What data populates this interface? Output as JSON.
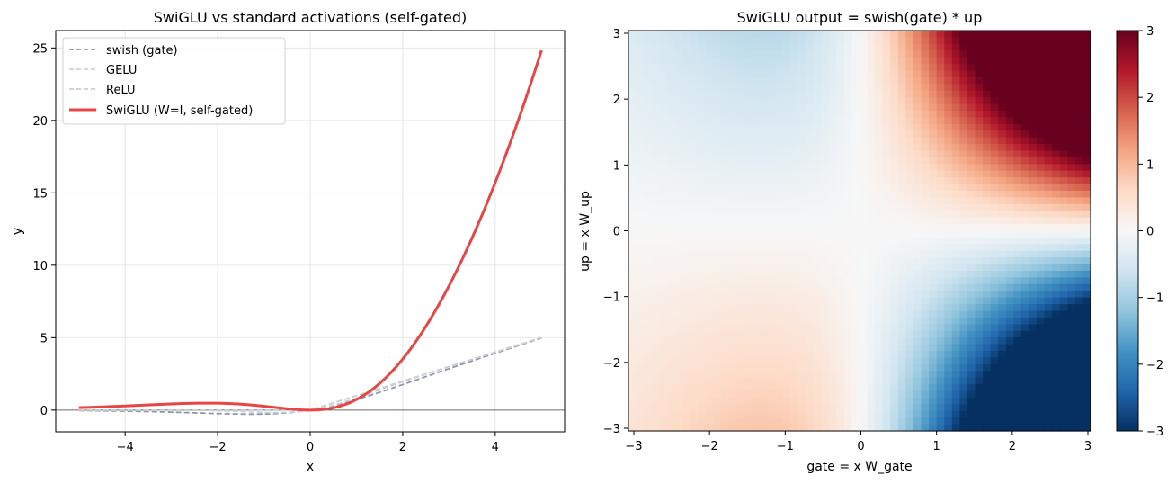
{
  "chart_data": [
    {
      "type": "line",
      "title": "SwiGLU vs standard activations (self-gated)",
      "xlabel": "x",
      "ylabel": "y",
      "xlim": [
        -5.5,
        5.5
      ],
      "ylim": [
        -1.5,
        26.2
      ],
      "xticks": [
        -4,
        -2,
        0,
        2,
        4
      ],
      "xtick_labels": [
        "−4",
        "−2",
        "0",
        "2",
        "4"
      ],
      "yticks": [
        0,
        5,
        10,
        15,
        20,
        25
      ],
      "ytick_labels": [
        "0",
        "5",
        "10",
        "15",
        "20",
        "25"
      ],
      "grid": true,
      "legend_position": "upper-left",
      "zero_line": true,
      "x_domain": [
        -5,
        5
      ],
      "series": [
        {
          "name": "swish (gate)",
          "function": "swish",
          "style": "dashed",
          "color": "#8c98b0"
        },
        {
          "name": "GELU",
          "function": "gelu",
          "style": "dashed",
          "color": "#c6d2df"
        },
        {
          "name": "ReLU",
          "function": "relu",
          "style": "dashed",
          "color": "#cdcdcd"
        },
        {
          "name": "SwiGLU (W=I, self-gated)",
          "function": "swiglu",
          "style": "solid",
          "color": "#e84545"
        }
      ]
    },
    {
      "type": "heatmap",
      "title": "SwiGLU output = swish(gate) * up",
      "xlabel": "gate = x W_gate",
      "ylabel": "up = x W_up",
      "function": "swish(gate) * up",
      "xlim": [
        -3,
        3
      ],
      "ylim": [
        -3,
        3
      ],
      "grid_size": 60,
      "xticks": [
        -3,
        -2,
        -1,
        0,
        1,
        2,
        3
      ],
      "xtick_labels": [
        "−3",
        "−2",
        "−1",
        "0",
        "1",
        "2",
        "3"
      ],
      "yticks": [
        -3,
        -2,
        -1,
        0,
        1,
        2,
        3
      ],
      "ytick_labels": [
        "−3",
        "−2",
        "−1",
        "0",
        "1",
        "2",
        "3"
      ],
      "colormap": "RdBu_r",
      "color_range": [
        -3,
        3
      ],
      "colorbar_ticks": [
        -3,
        -2,
        -1,
        0,
        1,
        2,
        3
      ],
      "colorbar_tick_labels": [
        "−3",
        "−2",
        "−1",
        "0",
        "1",
        "2",
        "3"
      ]
    }
  ]
}
